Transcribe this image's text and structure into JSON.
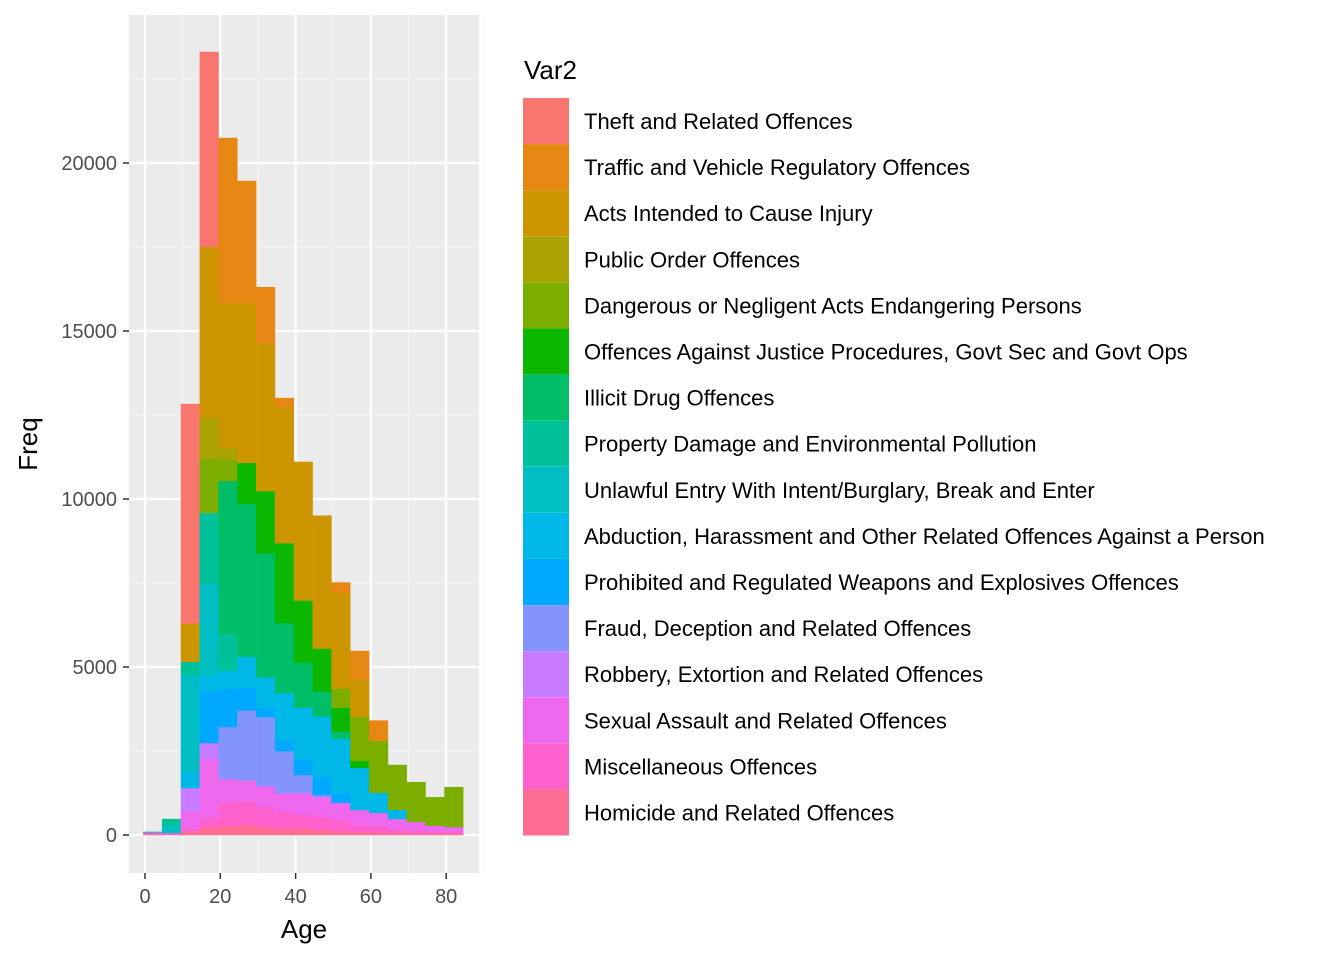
{
  "chart_data": {
    "type": "bar",
    "stacked": true,
    "histogram": true,
    "bin_width": 5,
    "title": "",
    "xlabel": "Age",
    "ylabel": "Freq",
    "xlim": [
      -4,
      89
    ],
    "ylim": [
      -1200,
      24400
    ],
    "x_ticks": [
      0,
      20,
      40,
      60,
      80
    ],
    "x_tick_labels": [
      "0",
      "20",
      "40",
      "60",
      "80"
    ],
    "y_ticks": [
      0,
      5000,
      10000,
      15000,
      20000
    ],
    "y_tick_labels": [
      "0",
      "5000",
      "10000",
      "15000",
      "20000"
    ],
    "grid": true,
    "legend_title": "Var2",
    "legend_position": "right",
    "x": [
      2,
      7,
      12,
      17,
      22,
      27,
      32,
      37,
      42,
      47,
      52,
      57,
      62,
      67,
      72,
      77,
      82
    ],
    "series": [
      {
        "name": "Theft and Related Offences",
        "color": "#F8766D",
        "values": [
          0,
          0,
          6530,
          5800,
          0,
          0,
          0,
          0,
          0,
          0,
          0,
          0,
          0,
          0,
          0,
          0,
          0
        ]
      },
      {
        "name": "Traffic and Vehicle Regulatory Offences",
        "color": "#E68613",
        "values": [
          0,
          0,
          0,
          0,
          4910,
          3630,
          1670,
          270,
          0,
          0,
          300,
          830,
          600,
          0,
          0,
          0,
          0
        ]
      },
      {
        "name": "Acts Intended to Cause Injury",
        "color": "#CD9600",
        "values": [
          0,
          0,
          1140,
          5090,
          4320,
          4760,
          4400,
          4050,
          4130,
          3960,
          2860,
          1130,
          0,
          0,
          0,
          0,
          0
        ]
      },
      {
        "name": "Public Order Offences",
        "color": "#ABA300",
        "values": [
          0,
          0,
          0,
          1220,
          330,
          0,
          0,
          0,
          0,
          0,
          0,
          0,
          0,
          0,
          0,
          0,
          0
        ]
      },
      {
        "name": "Dangerous or Negligent Acts Endangering Persons",
        "color": "#7CAE00",
        "values": [
          0,
          0,
          0,
          1610,
          650,
          0,
          0,
          0,
          0,
          0,
          570,
          1310,
          1550,
          1340,
          1190,
          850,
          1190
        ]
      },
      {
        "name": "Offences Against Justice Procedures, Govt Sec and Govt Ops",
        "color": "#0CB702",
        "values": [
          0,
          0,
          0,
          0,
          0,
          1220,
          1850,
          2380,
          1850,
          1280,
          710,
          210,
          0,
          0,
          0,
          0,
          0
        ]
      },
      {
        "name": "Illicit Drug Offences",
        "color": "#00BE67",
        "values": [
          0,
          0,
          0,
          0,
          4550,
          4550,
          3690,
          2080,
          1340,
          740,
          210,
          0,
          0,
          0,
          0,
          0,
          0
        ]
      },
      {
        "name": "Property Damage and Environmental Pollution",
        "color": "#00C19A",
        "values": [
          0,
          200,
          380,
          2110,
          1100,
          0,
          0,
          0,
          0,
          0,
          0,
          0,
          0,
          0,
          0,
          0,
          0
        ]
      },
      {
        "name": "Unlawful Entry With Intent/Burglary, Break and Enter",
        "color": "#00BFC4",
        "values": [
          20,
          220,
          2900,
          2740,
          0,
          0,
          0,
          0,
          0,
          0,
          0,
          0,
          0,
          0,
          0,
          0,
          0
        ]
      },
      {
        "name": "Abduction, Harassment and Other Related Offences Against a Person",
        "color": "#00B8E7",
        "values": [
          0,
          0,
          480,
          450,
          540,
          920,
          920,
          1400,
          1550,
          1790,
          1610,
          1250,
          600,
          270,
          0,
          0,
          0
        ]
      },
      {
        "name": "Prohibited and Regulated Weapons and Explosives Offences",
        "color": "#00A9FF",
        "values": [
          0,
          0,
          0,
          1550,
          1130,
          680,
          270,
          330,
          450,
          550,
          300,
          0,
          0,
          0,
          0,
          0,
          0
        ]
      },
      {
        "name": "Fraud, Deception and Related Offences",
        "color": "#8494FF",
        "values": [
          0,
          0,
          0,
          0,
          1550,
          2080,
          2050,
          1250,
          540,
          50,
          0,
          0,
          0,
          0,
          0,
          0,
          0
        ]
      },
      {
        "name": "Robbery, Extortion and Related Offences",
        "color": "#C77CFF",
        "values": [
          0,
          0,
          700,
          480,
          0,
          0,
          0,
          0,
          0,
          0,
          0,
          0,
          0,
          0,
          0,
          0,
          0
        ]
      },
      {
        "name": "Sexual Assault and Related Offences",
        "color": "#ED68ED",
        "values": [
          0,
          0,
          500,
          1750,
          710,
          620,
          620,
          570,
          650,
          600,
          510,
          450,
          420,
          300,
          250,
          180,
          140
        ]
      },
      {
        "name": "Miscellaneous Offences",
        "color": "#FF61CC",
        "values": [
          50,
          60,
          100,
          270,
          690,
          710,
          600,
          480,
          400,
          390,
          330,
          210,
          160,
          120,
          90,
          60,
          60
        ]
      },
      {
        "name": "Homicide and Related Offences",
        "color": "#FF6C91",
        "values": [
          30,
          0,
          100,
          240,
          270,
          300,
          240,
          200,
          200,
          150,
          120,
          90,
          80,
          60,
          50,
          40,
          40
        ]
      }
    ]
  }
}
